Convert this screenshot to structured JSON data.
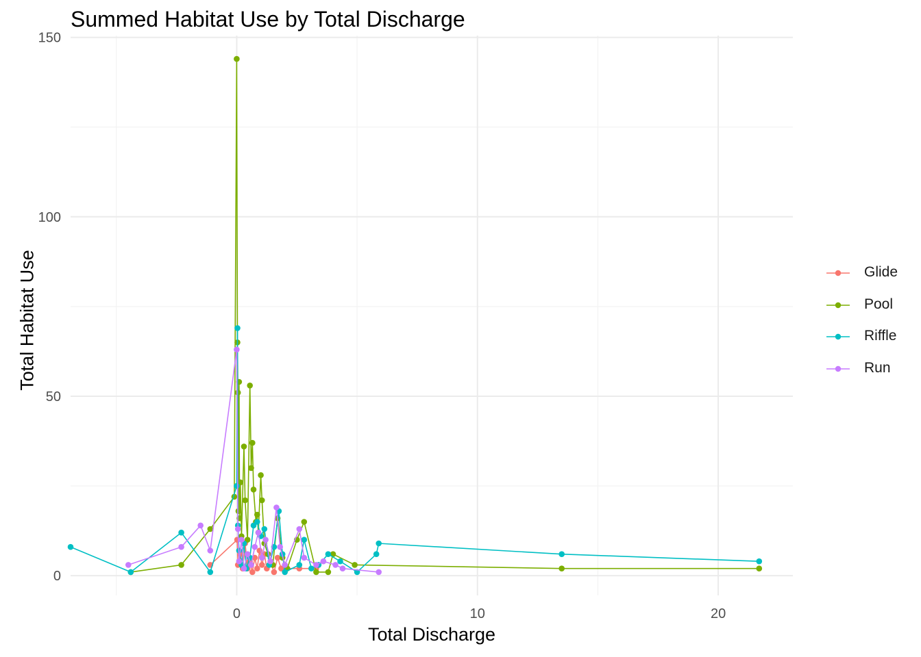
{
  "chart_data": {
    "type": "line",
    "title": "Summed Habitat Use by Total Discharge",
    "xlabel": "Total Discharge",
    "ylabel": "Total Habitat Use",
    "xlim": [
      -6.9,
      23.1
    ],
    "ylim": [
      -5.5,
      150.5
    ],
    "x_ticks": [
      0,
      10,
      20
    ],
    "y_ticks": [
      0,
      50,
      100,
      150
    ],
    "grid": true,
    "legend_position": "right",
    "series": [
      {
        "name": "Glide",
        "color": "#F8766D",
        "points": [
          [
            -1.1,
            3
          ],
          [
            0.02,
            10
          ],
          [
            0.05,
            3
          ],
          [
            0.15,
            6
          ],
          [
            0.25,
            2
          ],
          [
            0.35,
            9
          ],
          [
            0.45,
            2
          ],
          [
            0.55,
            4
          ],
          [
            0.65,
            1
          ],
          [
            0.75,
            5
          ],
          [
            0.85,
            2
          ],
          [
            0.95,
            7
          ],
          [
            1.05,
            3
          ],
          [
            1.15,
            6
          ],
          [
            1.25,
            2
          ],
          [
            1.4,
            4
          ],
          [
            1.55,
            1
          ],
          [
            1.7,
            5
          ],
          [
            1.85,
            2
          ],
          [
            2.6,
            2
          ],
          [
            3.3,
            2
          ]
        ]
      },
      {
        "name": "Pool",
        "color": "#7CAE00",
        "points": [
          [
            -4.4,
            1
          ],
          [
            -2.3,
            3
          ],
          [
            -1.1,
            13
          ],
          [
            -0.1,
            22
          ],
          [
            0.0,
            144
          ],
          [
            0.03,
            65
          ],
          [
            0.05,
            51
          ],
          [
            0.07,
            18
          ],
          [
            0.1,
            54
          ],
          [
            0.12,
            16
          ],
          [
            0.15,
            26
          ],
          [
            0.2,
            11
          ],
          [
            0.3,
            36
          ],
          [
            0.35,
            21
          ],
          [
            0.45,
            10
          ],
          [
            0.55,
            53
          ],
          [
            0.6,
            30
          ],
          [
            0.65,
            37
          ],
          [
            0.7,
            24
          ],
          [
            0.8,
            15
          ],
          [
            0.85,
            17
          ],
          [
            0.9,
            12
          ],
          [
            1.0,
            28
          ],
          [
            1.05,
            21
          ],
          [
            1.15,
            9
          ],
          [
            1.3,
            6
          ],
          [
            1.5,
            3
          ],
          [
            1.7,
            16
          ],
          [
            1.9,
            5
          ],
          [
            2.1,
            2
          ],
          [
            2.5,
            10
          ],
          [
            2.8,
            15
          ],
          [
            3.3,
            1
          ],
          [
            3.8,
            1
          ],
          [
            4.0,
            6
          ],
          [
            4.9,
            3
          ],
          [
            13.5,
            2
          ],
          [
            21.7,
            2
          ]
        ]
      },
      {
        "name": "Riffle",
        "color": "#00BFC4",
        "points": [
          [
            -6.9,
            8
          ],
          [
            -4.4,
            1
          ],
          [
            -2.3,
            12
          ],
          [
            -1.1,
            1
          ],
          [
            0.0,
            25
          ],
          [
            0.03,
            69
          ],
          [
            0.05,
            14
          ],
          [
            0.1,
            7
          ],
          [
            0.2,
            3
          ],
          [
            0.3,
            9
          ],
          [
            0.4,
            2
          ],
          [
            0.55,
            5
          ],
          [
            0.7,
            14
          ],
          [
            0.85,
            15
          ],
          [
            1.0,
            11
          ],
          [
            1.15,
            13
          ],
          [
            1.35,
            3
          ],
          [
            1.55,
            8
          ],
          [
            1.75,
            18
          ],
          [
            1.9,
            6
          ],
          [
            2.0,
            1
          ],
          [
            2.6,
            3
          ],
          [
            2.8,
            10
          ],
          [
            3.1,
            2
          ],
          [
            3.4,
            3
          ],
          [
            3.8,
            6
          ],
          [
            4.3,
            4
          ],
          [
            5.0,
            1
          ],
          [
            5.8,
            6
          ],
          [
            5.9,
            9
          ],
          [
            13.5,
            6
          ],
          [
            21.7,
            4
          ]
        ]
      },
      {
        "name": "Run",
        "color": "#C77CFF",
        "points": [
          [
            -4.5,
            3
          ],
          [
            -2.3,
            8
          ],
          [
            -1.5,
            14
          ],
          [
            -1.1,
            7
          ],
          [
            0.0,
            63
          ],
          [
            0.05,
            13
          ],
          [
            0.1,
            4
          ],
          [
            0.2,
            10
          ],
          [
            0.3,
            2
          ],
          [
            0.45,
            6
          ],
          [
            0.6,
            3
          ],
          [
            0.75,
            8
          ],
          [
            0.9,
            12
          ],
          [
            1.05,
            5
          ],
          [
            1.2,
            10
          ],
          [
            1.4,
            4
          ],
          [
            1.65,
            19
          ],
          [
            1.8,
            8
          ],
          [
            2.0,
            3
          ],
          [
            2.6,
            13
          ],
          [
            2.8,
            5
          ],
          [
            3.3,
            3
          ],
          [
            3.6,
            4
          ],
          [
            4.1,
            3
          ],
          [
            4.4,
            2
          ],
          [
            5.9,
            1
          ]
        ]
      }
    ]
  }
}
